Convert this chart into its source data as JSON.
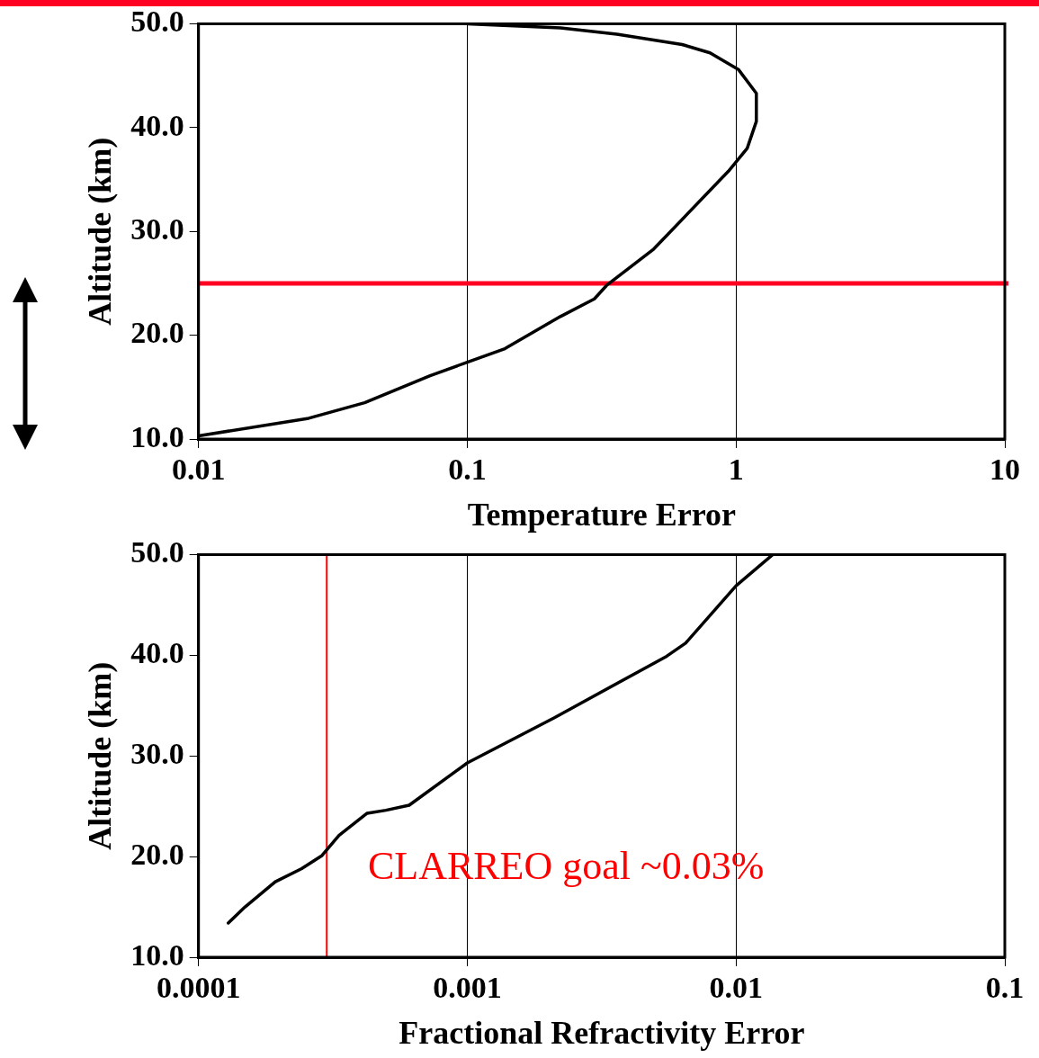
{
  "chart_data": [
    {
      "type": "line",
      "xlabel": "Temperature Error",
      "ylabel": "Altitude (km)",
      "log": "x",
      "grid": "x",
      "legend": false,
      "marker": "none",
      "line_style": "solid",
      "x": [
        0.01,
        0.0257,
        0.0415,
        0.0727,
        0.1,
        0.138,
        0.222,
        0.297,
        0.33,
        0.494,
        0.937,
        1.1,
        1.19,
        1.19,
        1.02,
        0.8,
        0.63,
        0.36,
        0.222,
        0.1
      ],
      "series": [
        {
          "color": "#000000",
          "values": [
            10.3,
            12.0,
            13.5,
            16.1,
            17.4,
            18.7,
            21.8,
            23.5,
            24.8,
            28.3,
            35.8,
            38.0,
            40.6,
            43.3,
            45.6,
            47.2,
            48.0,
            49.0,
            49.6,
            50.0
          ]
        }
      ],
      "xlim": [
        0.01,
        10
      ],
      "xticks": [
        0.01,
        0.1,
        1,
        10
      ],
      "ylim": [
        10,
        50
      ],
      "yticks": [
        {
          "value": 10,
          "label": "10.0"
        },
        {
          "value": 20,
          "label": "20.0"
        },
        {
          "value": 30,
          "label": "30.0"
        },
        {
          "value": 40,
          "label": "40.0"
        },
        {
          "value": 50,
          "label": "50.0"
        }
      ],
      "ref_lines": [
        {
          "axis": "y",
          "value": 25,
          "color": "#ff0022"
        }
      ]
    },
    {
      "type": "line",
      "xlabel": "Fractional Refractivity Error",
      "ylabel": "Altitude (km)",
      "log": "x",
      "grid": "x",
      "legend": false,
      "marker": "none",
      "line_style": "solid",
      "x": [
        0.000129,
        0.000149,
        0.000193,
        0.000242,
        0.000288,
        0.000333,
        0.000424,
        0.000498,
        0.000608,
        0.001,
        0.00211,
        0.00552,
        0.00649,
        0.01,
        0.0137
      ],
      "series": [
        {
          "color": "#000000",
          "values": [
            13.4,
            15.0,
            17.5,
            18.8,
            20.1,
            22.1,
            24.3,
            24.6,
            25.1,
            29.3,
            33.8,
            39.9,
            41.2,
            46.9,
            50.0
          ]
        }
      ],
      "xlim": [
        0.0001,
        0.1
      ],
      "xticks": [
        0.0001,
        0.001,
        0.01,
        0.1
      ],
      "ylim": [
        10,
        50
      ],
      "yticks": [
        {
          "value": 10,
          "label": "10.0"
        },
        {
          "value": 20,
          "label": "20.0"
        },
        {
          "value": 30,
          "label": "30.0"
        },
        {
          "value": 40,
          "label": "40.0"
        },
        {
          "value": 50,
          "label": "50.0"
        }
      ],
      "ref_lines": [
        {
          "axis": "x",
          "value": 0.0003,
          "color": "#ff0000"
        }
      ],
      "annotations": [
        "CLARREO goal ~0.03%"
      ]
    }
  ]
}
